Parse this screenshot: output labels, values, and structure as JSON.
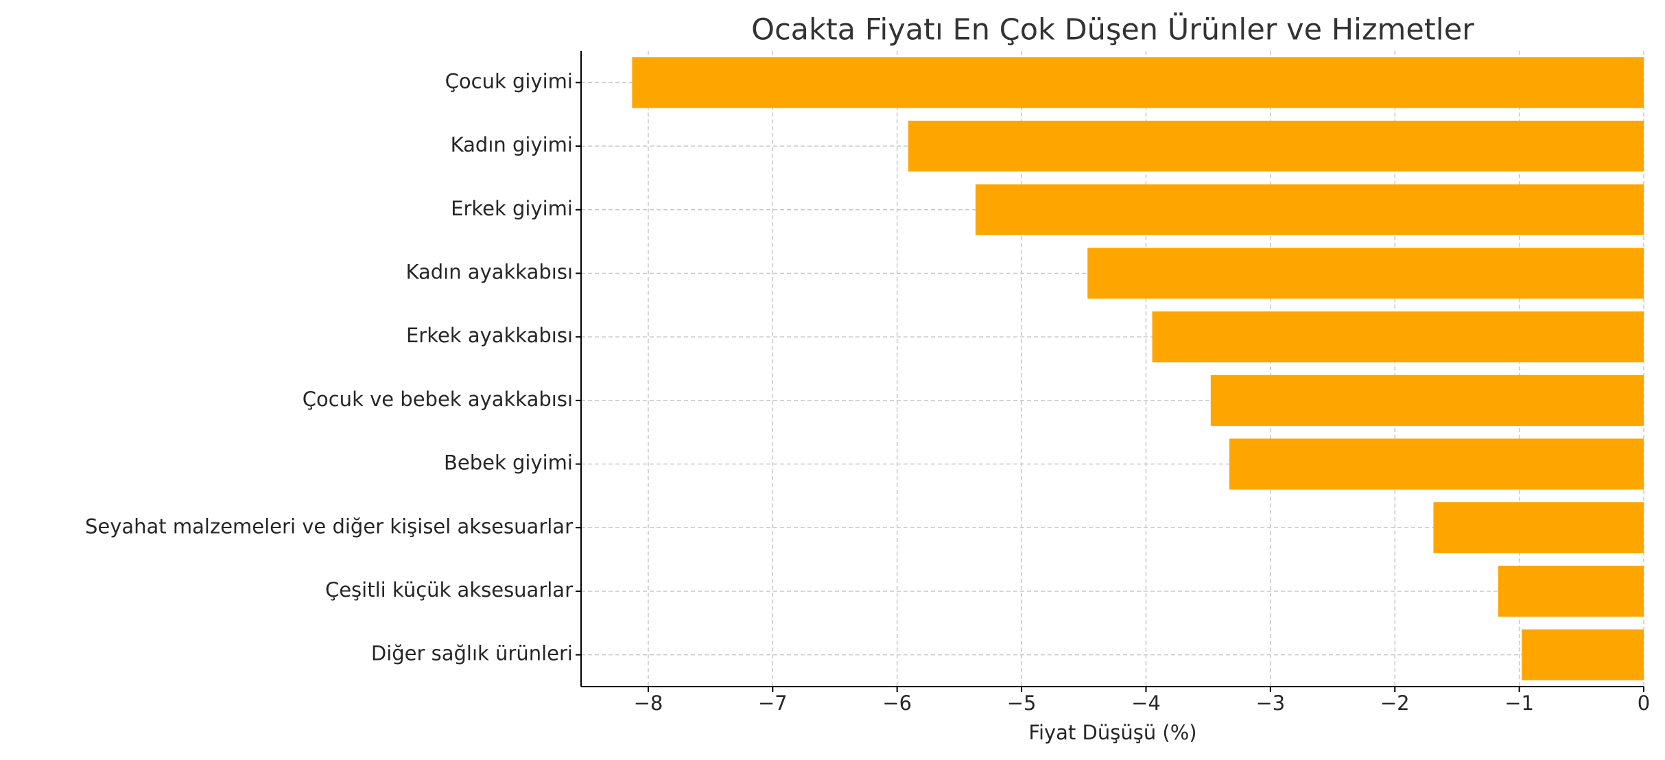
{
  "chart_data": {
    "type": "barh",
    "title": "Ocakta Fiyatı En Çok Düşen Ürünler ve Hizmetler",
    "x_label": "Fiyat Düşüşü (%)",
    "categories": [
      "Çocuk giyimi",
      "Kadın giyimi",
      "Erkek giyimi",
      "Kadın ayakkabısı",
      "Erkek ayakkabısı",
      "Çocuk ve bebek ayakkabısı",
      "Bebek giyimi",
      "Seyahat malzemeleri ve diğer kişisel aksesuarlar",
      "Çeşitli küçük aksesuarlar",
      "Diğer sağlık ürünleri"
    ],
    "values": [
      -8.13,
      -5.91,
      -5.37,
      -4.47,
      -3.95,
      -3.48,
      -3.33,
      -1.69,
      -1.17,
      -0.98
    ],
    "color": "#ffa500",
    "xlim": [
      -8.54,
      0
    ],
    "xticks": [
      {
        "value": -8,
        "label": "−8"
      },
      {
        "value": -7,
        "label": "−7"
      },
      {
        "value": -6,
        "label": "−6"
      },
      {
        "value": -5,
        "label": "−5"
      },
      {
        "value": -4,
        "label": "−4"
      },
      {
        "value": -3,
        "label": "−3"
      },
      {
        "value": -2,
        "label": "−2"
      },
      {
        "value": -1,
        "label": "−1"
      },
      0
    ],
    "grid": true
  }
}
